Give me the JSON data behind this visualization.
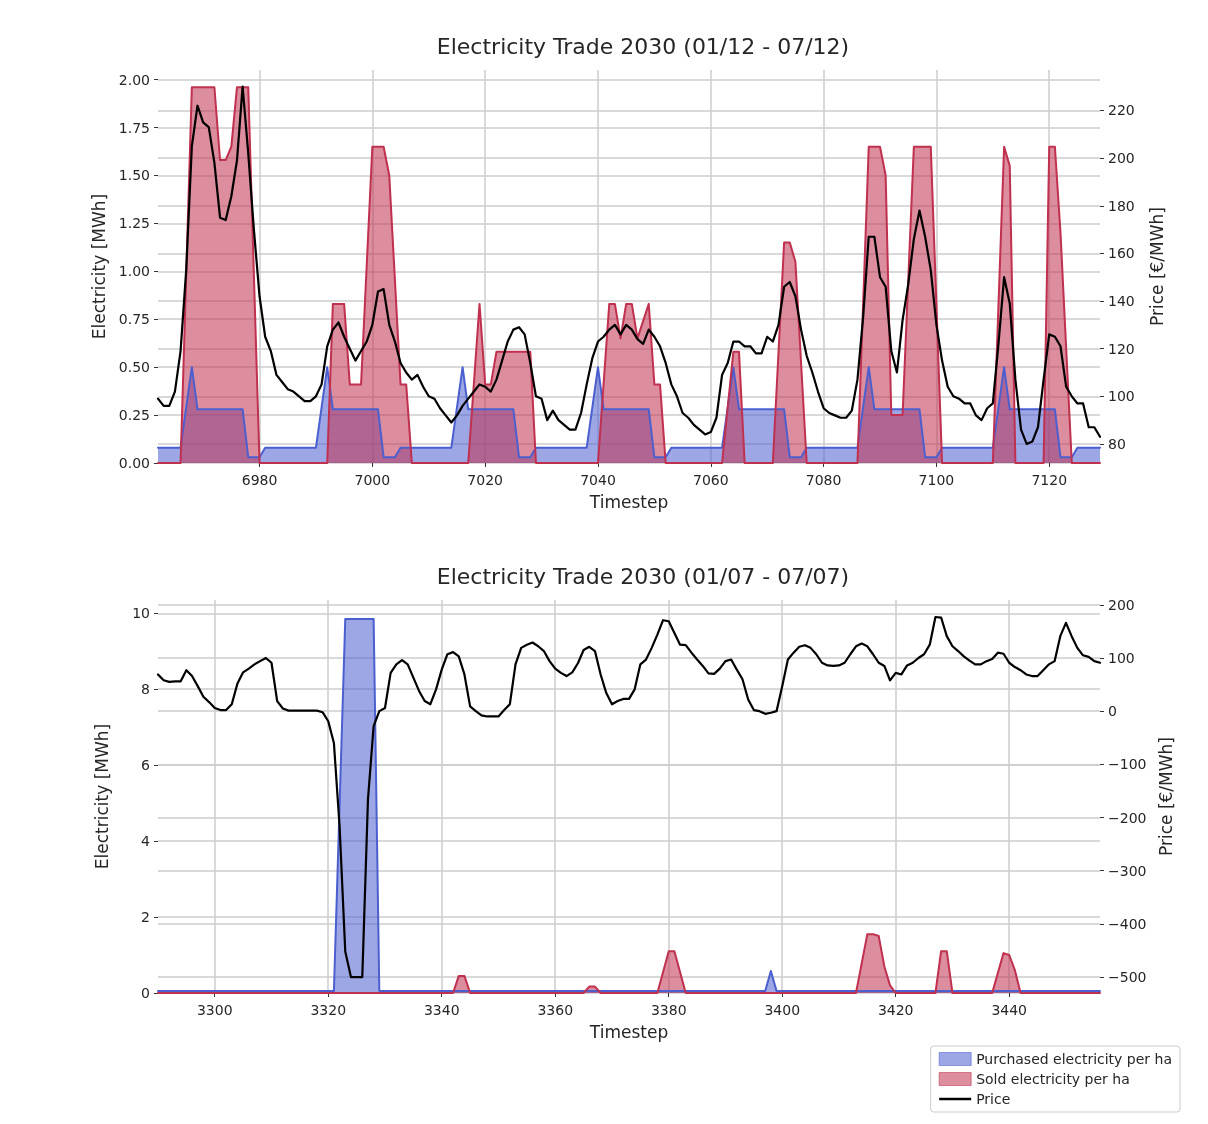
{
  "chart_data": [
    {
      "type": "area",
      "title": "Electricity Trade 2030 (01/12 - 07/12)",
      "xlabel": "Timestep",
      "ylabel": "Electricity [MWh]",
      "y2label": "Price [€/MWh]",
      "xlim": [
        6962,
        7129
      ],
      "xticks": [
        6980,
        7000,
        7020,
        7040,
        7060,
        7080,
        7100,
        7120
      ],
      "ylim": [
        0,
        2.05
      ],
      "yticks": [
        {
          "value": 0,
          "label": "0.00"
        },
        {
          "value": 0.25,
          "label": "0.25"
        },
        {
          "value": 0.5,
          "label": "0.50"
        },
        {
          "value": 0.75,
          "label": "0.75"
        },
        {
          "value": 1,
          "label": "1.00"
        },
        {
          "value": 1.25,
          "label": "1.25"
        },
        {
          "value": 1.5,
          "label": "1.50"
        },
        {
          "value": 1.75,
          "label": "1.75"
        },
        {
          "value": 2,
          "label": "2.00"
        }
      ],
      "y2lim": [
        72,
        237
      ],
      "y2ticks": [
        80,
        100,
        120,
        140,
        160,
        180,
        200,
        220
      ],
      "grid": true,
      "marker": "none",
      "series": [
        {
          "type": "area",
          "color": "#4c5fcf",
          "x": [
            6962,
            6966,
            6968,
            6969,
            6977,
            6978,
            6980,
            6981,
            6990,
            6992,
            6993,
            7001,
            7002,
            7004,
            7005,
            7014,
            7016,
            7017,
            7025,
            7026,
            7028,
            7029,
            7038,
            7040,
            7041,
            7049,
            7050,
            7052,
            7053,
            7062,
            7064,
            7065,
            7073,
            7074,
            7076,
            7077,
            7086,
            7088,
            7089,
            7097,
            7098,
            7100,
            7101,
            7110,
            7112,
            7113,
            7121,
            7122,
            7124,
            7125,
            7129
          ],
          "values": [
            0.08,
            0.08,
            0.5,
            0.28,
            0.28,
            0.03,
            0.03,
            0.08,
            0.08,
            0.5,
            0.28,
            0.28,
            0.03,
            0.03,
            0.08,
            0.08,
            0.5,
            0.28,
            0.28,
            0.03,
            0.03,
            0.08,
            0.08,
            0.5,
            0.28,
            0.28,
            0.03,
            0.03,
            0.08,
            0.08,
            0.5,
            0.28,
            0.28,
            0.03,
            0.03,
            0.08,
            0.08,
            0.5,
            0.28,
            0.28,
            0.03,
            0.03,
            0.08,
            0.08,
            0.5,
            0.28,
            0.28,
            0.03,
            0.03,
            0.08,
            0.08
          ]
        },
        {
          "type": "area",
          "color": "#c0304f",
          "x": [
            6962,
            6966,
            6968,
            6972,
            6973,
            6974,
            6975,
            6976,
            6978,
            6980,
            6992,
            6993,
            6995,
            6996,
            6998,
            7000,
            7002,
            7003,
            7005,
            7006,
            7007,
            7017,
            7019,
            7020,
            7021,
            7022,
            7028,
            7029,
            7040,
            7042,
            7043,
            7044,
            7045,
            7046,
            7047,
            7049,
            7050,
            7051,
            7052,
            7062,
            7064,
            7065,
            7066,
            7071,
            7073,
            7074,
            7075,
            7077,
            7086,
            7088,
            7090,
            7091,
            7092,
            7094,
            7096,
            7099,
            7101,
            7110,
            7112,
            7113,
            7114,
            7119,
            7120,
            7121,
            7122,
            7124,
            7129
          ],
          "values": [
            0,
            0,
            1.96,
            1.96,
            1.58,
            1.58,
            1.65,
            1.96,
            1.96,
            0,
            0,
            0.83,
            0.83,
            0.41,
            0.41,
            1.65,
            1.65,
            1.5,
            0.41,
            0.41,
            0,
            0,
            0.83,
            0.41,
            0.41,
            0.58,
            0.58,
            0,
            0,
            0.83,
            0.83,
            0.65,
            0.83,
            0.83,
            0.65,
            0.83,
            0.41,
            0.41,
            0,
            0,
            0.58,
            0.58,
            0,
            0,
            1.15,
            1.15,
            1.05,
            0,
            0,
            1.65,
            1.65,
            1.5,
            0.25,
            0.25,
            1.65,
            1.65,
            0,
            0,
            1.65,
            1.55,
            0,
            0,
            1.65,
            1.65,
            1.2,
            0,
            0
          ]
        },
        {
          "type": "line",
          "axis": "y2",
          "color": "#000000",
          "x": [
            6962,
            6963,
            6964,
            6965,
            6966,
            6967,
            6968,
            6969,
            6970,
            6971,
            6972,
            6973,
            6974,
            6975,
            6976,
            6977,
            6978,
            6979,
            6980,
            6981,
            6982,
            6983,
            6984,
            6985,
            6986,
            6987,
            6988,
            6989,
            6990,
            6991,
            6992,
            6993,
            6994,
            6995,
            6996,
            6997,
            6998,
            6999,
            7000,
            7001,
            7002,
            7003,
            7004,
            7005,
            7006,
            7007,
            7008,
            7009,
            7010,
            7011,
            7012,
            7013,
            7014,
            7015,
            7016,
            7017,
            7018,
            7019,
            7020,
            7021,
            7022,
            7023,
            7024,
            7025,
            7026,
            7027,
            7028,
            7029,
            7030,
            7031,
            7032,
            7033,
            7034,
            7035,
            7036,
            7037,
            7038,
            7039,
            7040,
            7041,
            7042,
            7043,
            7044,
            7045,
            7046,
            7047,
            7048,
            7049,
            7050,
            7051,
            7052,
            7053,
            7054,
            7055,
            7056,
            7057,
            7058,
            7059,
            7060,
            7061,
            7062,
            7063,
            7064,
            7065,
            7066,
            7067,
            7068,
            7069,
            7070,
            7071,
            7072,
            7073,
            7074,
            7075,
            7076,
            7077,
            7078,
            7079,
            7080,
            7081,
            7082,
            7083,
            7084,
            7085,
            7086,
            7087,
            7088,
            7089,
            7090,
            7091,
            7092,
            7093,
            7094,
            7095,
            7096,
            7097,
            7098,
            7099,
            7100,
            7101,
            7102,
            7103,
            7104,
            7105,
            7106,
            7107,
            7108,
            7109,
            7110,
            7111,
            7112,
            7113,
            7114,
            7115,
            7116,
            7117,
            7118,
            7119,
            7120,
            7121,
            7122,
            7123,
            7124,
            7125,
            7126,
            7127,
            7128,
            7129
          ],
          "values": [
            99,
            96,
            96,
            102,
            119,
            153,
            205,
            222,
            215,
            213,
            198,
            175,
            174,
            184,
            199,
            230,
            202,
            170,
            142,
            125,
            119,
            109,
            106,
            103,
            102,
            100,
            98,
            98,
            100,
            105,
            121,
            128,
            131,
            125,
            120,
            115,
            119,
            123,
            130,
            144,
            145,
            130,
            123,
            114,
            110,
            107,
            109,
            104,
            100,
            99,
            95,
            92,
            89,
            92,
            96,
            99,
            102,
            105,
            104,
            102,
            107,
            115,
            123,
            128,
            129,
            126,
            114,
            100,
            99,
            90,
            94,
            90,
            88,
            86,
            86,
            93,
            105,
            116,
            123,
            125,
            128,
            130,
            126,
            130,
            128,
            124,
            122,
            128,
            125,
            121,
            114,
            105,
            100,
            93,
            91,
            88,
            86,
            84,
            85,
            91,
            109,
            114,
            123,
            123,
            121,
            121,
            118,
            118,
            125,
            123,
            130,
            146,
            148,
            142,
            128,
            117,
            110,
            102,
            95,
            93,
            92,
            91,
            91,
            94,
            107,
            133,
            167,
            167,
            150,
            146,
            119,
            110,
            132,
            147,
            166,
            178,
            167,
            153,
            130,
            115,
            104,
            100,
            99,
            97,
            97,
            92,
            90,
            95,
            97,
            122,
            150,
            139,
            107,
            86,
            80,
            81,
            87,
            107,
            126,
            125,
            121,
            104,
            100,
            97,
            97,
            87,
            87,
            83
          ]
        }
      ]
    },
    {
      "type": "area",
      "title": "Electricity Trade 2030 (01/07 - 07/07)",
      "xlabel": "Timestep",
      "ylabel": "Electricity [MWh]",
      "y2label": "Price [€/MWh]",
      "xlim": [
        3290,
        3456
      ],
      "xticks": [
        3300,
        3320,
        3340,
        3360,
        3380,
        3400,
        3420,
        3440
      ],
      "ylim": [
        0,
        10.35
      ],
      "yticks": [
        0,
        2,
        4,
        6,
        8,
        10
      ],
      "y2lim": [
        -530,
        209
      ],
      "y2ticks": [
        {
          "value": -500,
          "label": "−500"
        },
        {
          "value": -400,
          "label": "−400"
        },
        {
          "value": -300,
          "label": "−300"
        },
        {
          "value": -200,
          "label": "−200"
        },
        {
          "value": -100,
          "label": "−100"
        },
        0,
        100,
        200
      ],
      "grid": true,
      "marker": "none",
      "legend": "bottom right",
      "series": [
        {
          "type": "area",
          "name": "Purchased electricity per ha",
          "color": "#4c5fcf",
          "x": [
            3290,
            3321,
            3323,
            3328,
            3329,
            3397,
            3398,
            3399,
            3456
          ],
          "values": [
            0.05,
            0.05,
            9.85,
            9.85,
            0.05,
            0.05,
            0.58,
            0.05,
            0.05
          ]
        },
        {
          "type": "area",
          "name": "Sold electricity per ha",
          "color": "#c0304f",
          "x": [
            3290,
            3342,
            3343,
            3344,
            3345,
            3365,
            3366,
            3367,
            3368,
            3378,
            3380,
            3381,
            3383,
            3413,
            3415,
            3416,
            3417,
            3418,
            3419,
            3420,
            3427,
            3428,
            3429,
            3430,
            3437,
            3439,
            3440,
            3441,
            3442,
            3456
          ],
          "values": [
            0,
            0,
            0.45,
            0.45,
            0,
            0,
            0.17,
            0.17,
            0,
            0,
            1.1,
            1.1,
            0,
            0,
            1.55,
            1.55,
            1.5,
            0.7,
            0.2,
            0,
            0,
            1.1,
            1.1,
            0,
            0,
            1.05,
            1.0,
            0.6,
            0,
            0
          ]
        },
        {
          "type": "line",
          "name": "Price",
          "axis": "y2",
          "color": "#000000",
          "x": [
            3290,
            3291,
            3292,
            3293,
            3294,
            3295,
            3296,
            3297,
            3298,
            3299,
            3300,
            3301,
            3302,
            3303,
            3304,
            3305,
            3306,
            3307,
            3308,
            3309,
            3310,
            3311,
            3312,
            3313,
            3314,
            3315,
            3316,
            3317,
            3318,
            3319,
            3320,
            3321,
            3322,
            3323,
            3324,
            3325,
            3326,
            3327,
            3328,
            3329,
            3330,
            3331,
            3332,
            3333,
            3334,
            3335,
            3336,
            3337,
            3338,
            3339,
            3340,
            3341,
            3342,
            3343,
            3344,
            3345,
            3346,
            3347,
            3348,
            3349,
            3350,
            3351,
            3352,
            3353,
            3354,
            3355,
            3356,
            3357,
            3358,
            3359,
            3360,
            3361,
            3362,
            3363,
            3364,
            3365,
            3366,
            3367,
            3368,
            3369,
            3370,
            3371,
            3372,
            3373,
            3374,
            3375,
            3376,
            3377,
            3378,
            3379,
            3380,
            3381,
            3382,
            3383,
            3384,
            3385,
            3386,
            3387,
            3388,
            3389,
            3390,
            3391,
            3392,
            3393,
            3394,
            3395,
            3396,
            3397,
            3398,
            3399,
            3400,
            3401,
            3402,
            3403,
            3404,
            3405,
            3406,
            3407,
            3408,
            3409,
            3410,
            3411,
            3412,
            3413,
            3414,
            3415,
            3416,
            3417,
            3418,
            3419,
            3420,
            3421,
            3422,
            3423,
            3424,
            3425,
            3426,
            3427,
            3428,
            3429,
            3430,
            3431,
            3432,
            3433,
            3434,
            3435,
            3436,
            3437,
            3438,
            3439,
            3440,
            3441,
            3442,
            3443,
            3444,
            3445,
            3446,
            3447,
            3448,
            3449,
            3450,
            3451,
            3452,
            3453,
            3454,
            3455,
            3456
          ],
          "values": [
            69,
            58,
            55,
            56,
            56,
            77,
            66,
            47,
            27,
            17,
            6,
            2,
            2,
            13,
            52,
            73,
            80,
            88,
            94,
            100,
            91,
            19,
            5,
            1,
            1,
            1,
            1,
            1,
            1,
            -2,
            -19,
            -60,
            -217,
            -452,
            -500,
            -500,
            -500,
            -166,
            -28,
            0,
            6,
            72,
            88,
            96,
            88,
            63,
            38,
            19,
            13,
            41,
            78,
            107,
            111,
            103,
            69,
            9,
            0,
            -8,
            -10,
            -10,
            -10,
            2,
            13,
            88,
            119,
            125,
            129,
            122,
            113,
            94,
            80,
            72,
            66,
            73,
            90,
            115,
            121,
            113,
            69,
            34,
            13,
            19,
            23,
            23,
            41,
            88,
            97,
            119,
            144,
            171,
            169,
            147,
            125,
            124,
            110,
            97,
            85,
            71,
            70,
            80,
            94,
            97,
            78,
            60,
            22,
            2,
            0,
            -5,
            -3,
            0,
            47,
            97,
            110,
            121,
            124,
            119,
            107,
            91,
            86,
            85,
            86,
            91,
            107,
            122,
            127,
            122,
            107,
            91,
            85,
            58,
            72,
            69,
            86,
            91,
            100,
            107,
            125,
            177,
            176,
            141,
            122,
            113,
            103,
            95,
            88,
            88,
            94,
            98,
            110,
            108,
            91,
            83,
            77,
            69,
            66,
            66,
            77,
            88,
            94,
            141,
            166,
            141,
            119,
            105,
            102,
            94,
            91
          ]
        }
      ]
    }
  ]
}
